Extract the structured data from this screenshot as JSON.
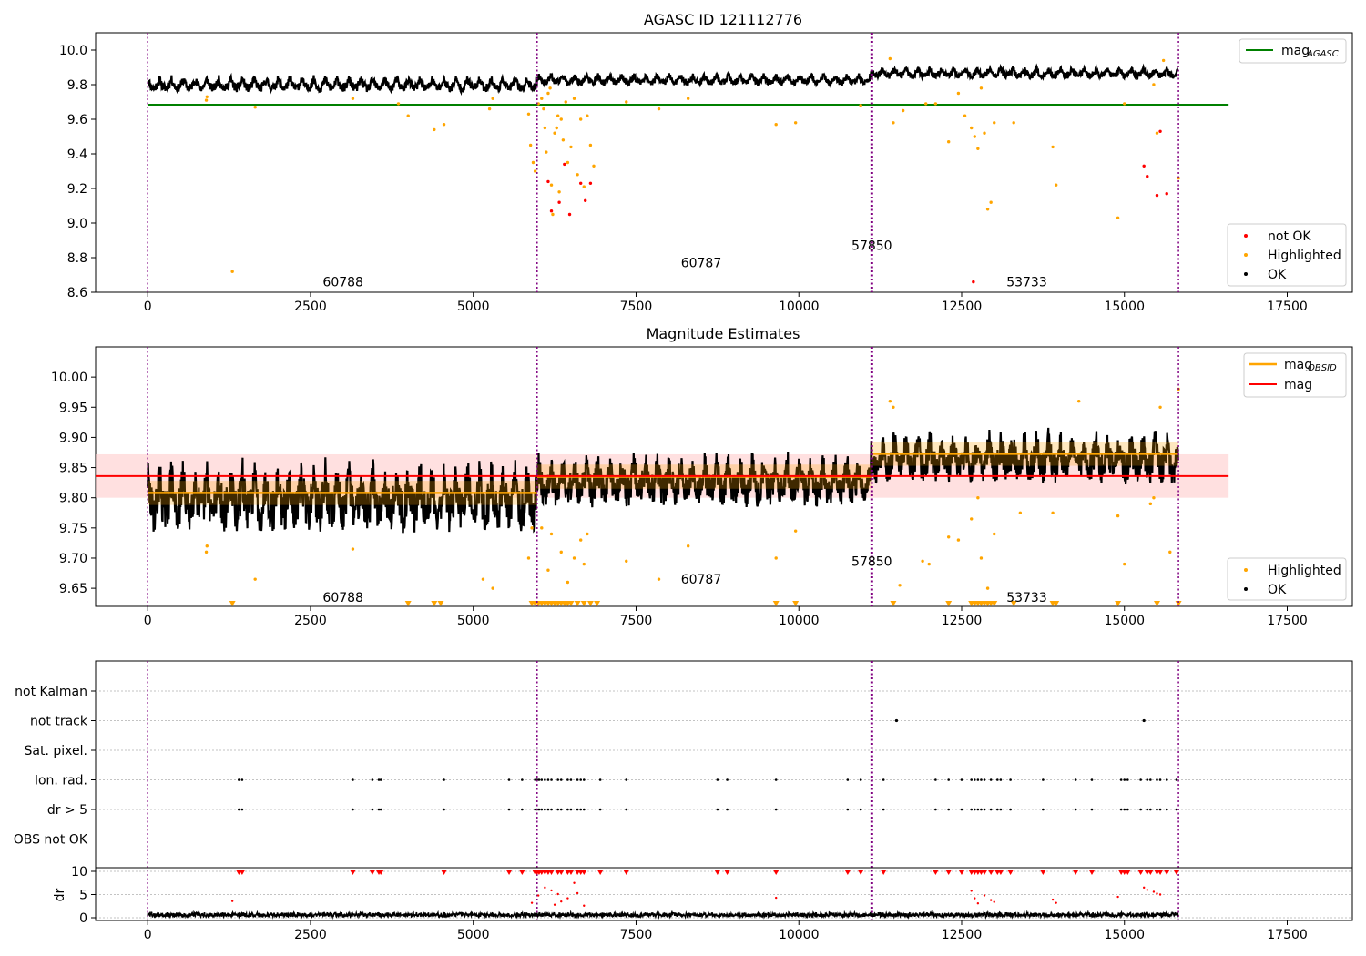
{
  "figure": {
    "title_top": "AGASC ID 121112776",
    "title_mid": "Magnitude Estimates"
  },
  "colors": {
    "ok": "#000000",
    "highlight": "#ffa500",
    "notok": "#ff0000",
    "agasc": "#008000",
    "obsid": "#ffa500",
    "mag": "#ff0000",
    "vline": "#800080",
    "band_mag": "#ffcccc",
    "grid": "#b0b0b0"
  },
  "chart_data": [
    {
      "type": "scatter",
      "title": "AGASC ID 121112776",
      "xlim": [
        -800,
        18500
      ],
      "ylim": [
        8.6,
        10.1
      ],
      "xticks": [
        0,
        2500,
        5000,
        7500,
        10000,
        12500,
        15000,
        17500
      ],
      "yticks": [
        8.6,
        8.8,
        9.0,
        9.2,
        9.4,
        9.6,
        9.8,
        10.0
      ],
      "obs_boundaries": [
        0,
        5980,
        11110,
        11130,
        15830
      ],
      "mag_agasc": 9.684,
      "observations": [
        {
          "obsid": "60788",
          "start": 0,
          "end": 5980,
          "mean": 9.81,
          "amp": 0.04
        },
        {
          "obsid": "60787",
          "start": 5980,
          "end": 11110,
          "mean": 9.835,
          "amp": 0.03
        },
        {
          "obsid": "57850",
          "start": 11110,
          "end": 11130,
          "mean": 9.86,
          "amp": 0.03
        },
        {
          "obsid": "53733",
          "start": 11130,
          "end": 15830,
          "mean": 9.873,
          "amp": 0.03
        }
      ],
      "obs_labels": [
        {
          "text": "60788",
          "x": 3000,
          "y": 8.66
        },
        {
          "text": "60787",
          "x": 8500,
          "y": 8.77
        },
        {
          "text": "57850",
          "x": 11120,
          "y": 8.87
        },
        {
          "text": "53733",
          "x": 13500,
          "y": 8.66
        }
      ],
      "highlighted": [
        [
          900,
          9.71
        ],
        [
          910,
          9.73
        ],
        [
          1300,
          8.72
        ],
        [
          1650,
          9.67
        ],
        [
          3150,
          9.72
        ],
        [
          3850,
          9.69
        ],
        [
          4000,
          9.62
        ],
        [
          4400,
          9.54
        ],
        [
          4550,
          9.57
        ],
        [
          5250,
          9.66
        ],
        [
          5300,
          9.72
        ],
        [
          5850,
          9.63
        ],
        [
          5880,
          9.45
        ],
        [
          5920,
          9.35
        ],
        [
          5950,
          9.3
        ],
        [
          6000,
          9.69
        ],
        [
          6050,
          9.72
        ],
        [
          6080,
          9.66
        ],
        [
          6100,
          9.55
        ],
        [
          6120,
          9.41
        ],
        [
          6150,
          9.75
        ],
        [
          6180,
          9.78
        ],
        [
          6200,
          9.22
        ],
        [
          6220,
          9.05
        ],
        [
          6250,
          9.52
        ],
        [
          6280,
          9.55
        ],
        [
          6300,
          9.62
        ],
        [
          6320,
          9.18
        ],
        [
          6350,
          9.6
        ],
        [
          6380,
          9.48
        ],
        [
          6420,
          9.7
        ],
        [
          6450,
          9.35
        ],
        [
          6500,
          9.44
        ],
        [
          6550,
          9.72
        ],
        [
          6600,
          9.28
        ],
        [
          6650,
          9.6
        ],
        [
          6700,
          9.21
        ],
        [
          6750,
          9.62
        ],
        [
          6800,
          9.45
        ],
        [
          6850,
          9.33
        ],
        [
          7350,
          9.7
        ],
        [
          7850,
          9.66
        ],
        [
          8300,
          9.72
        ],
        [
          9650,
          9.57
        ],
        [
          9950,
          9.58
        ],
        [
          10950,
          9.68
        ],
        [
          11400,
          9.95
        ],
        [
          11450,
          9.58
        ],
        [
          11600,
          9.65
        ],
        [
          11950,
          9.69
        ],
        [
          12100,
          9.69
        ],
        [
          12300,
          9.47
        ],
        [
          12450,
          9.75
        ],
        [
          12550,
          9.62
        ],
        [
          12650,
          9.55
        ],
        [
          12700,
          9.5
        ],
        [
          12750,
          9.43
        ],
        [
          12800,
          9.78
        ],
        [
          12850,
          9.52
        ],
        [
          12900,
          9.08
        ],
        [
          12950,
          9.12
        ],
        [
          13000,
          9.58
        ],
        [
          13300,
          9.58
        ],
        [
          13900,
          9.44
        ],
        [
          13950,
          9.22
        ],
        [
          14900,
          9.03
        ],
        [
          15000,
          9.69
        ],
        [
          15450,
          9.8
        ],
        [
          15500,
          9.52
        ],
        [
          15600,
          9.94
        ],
        [
          15830,
          9.26
        ]
      ],
      "not_ok": [
        [
          6150,
          9.24
        ],
        [
          6200,
          9.07
        ],
        [
          6320,
          9.12
        ],
        [
          6400,
          9.34
        ],
        [
          6480,
          9.05
        ],
        [
          6650,
          9.23
        ],
        [
          6720,
          9.13
        ],
        [
          6800,
          9.23
        ],
        [
          12680,
          8.66
        ],
        [
          15300,
          9.33
        ],
        [
          15350,
          9.27
        ],
        [
          15500,
          9.16
        ],
        [
          15550,
          9.53
        ],
        [
          15650,
          9.17
        ]
      ],
      "legend_upper": [
        {
          "label": "mag",
          "sub": "AGASC"
        }
      ],
      "legend_lower": [
        {
          "label": "not OK"
        },
        {
          "label": "Highlighted"
        },
        {
          "label": "OK"
        }
      ]
    },
    {
      "type": "scatter",
      "title": "Magnitude Estimates",
      "xlim": [
        -800,
        18500
      ],
      "ylim": [
        9.62,
        10.05
      ],
      "xticks": [
        0,
        2500,
        5000,
        7500,
        10000,
        12500,
        15000,
        17500
      ],
      "yticks": [
        9.65,
        9.7,
        9.75,
        9.8,
        9.85,
        9.9,
        9.95,
        10.0
      ],
      "mag": 9.836,
      "mag_band": [
        9.8,
        9.872
      ],
      "mag_obsid": [
        {
          "start": 0,
          "end": 5980,
          "value": 9.808
        },
        {
          "start": 5980,
          "end": 11110,
          "value": 9.835
        },
        {
          "start": 11110,
          "end": 15830,
          "value": 9.873
        }
      ],
      "highlighted": [
        [
          900,
          9.71
        ],
        [
          910,
          9.72
        ],
        [
          1650,
          9.665
        ],
        [
          3150,
          9.715
        ],
        [
          5150,
          9.665
        ],
        [
          5300,
          9.65
        ],
        [
          5850,
          9.7
        ],
        [
          5900,
          9.75
        ],
        [
          6050,
          9.75
        ],
        [
          6150,
          9.68
        ],
        [
          6200,
          9.74
        ],
        [
          6350,
          9.71
        ],
        [
          6450,
          9.66
        ],
        [
          6550,
          9.7
        ],
        [
          6650,
          9.73
        ],
        [
          6700,
          9.69
        ],
        [
          6750,
          9.74
        ],
        [
          7350,
          9.695
        ],
        [
          7850,
          9.665
        ],
        [
          8300,
          9.72
        ],
        [
          9650,
          9.7
        ],
        [
          9950,
          9.745
        ],
        [
          11400,
          9.96
        ],
        [
          11450,
          9.95
        ],
        [
          11550,
          9.655
        ],
        [
          11900,
          9.695
        ],
        [
          12000,
          9.69
        ],
        [
          12300,
          9.735
        ],
        [
          12450,
          9.73
        ],
        [
          12650,
          9.765
        ],
        [
          12750,
          9.8
        ],
        [
          12800,
          9.7
        ],
        [
          12900,
          9.65
        ],
        [
          13000,
          9.74
        ],
        [
          13400,
          9.775
        ],
        [
          13900,
          9.775
        ],
        [
          14300,
          9.96
        ],
        [
          14900,
          9.77
        ],
        [
          15000,
          9.69
        ],
        [
          15400,
          9.79
        ],
        [
          15450,
          9.8
        ],
        [
          15550,
          9.95
        ],
        [
          15700,
          9.71
        ],
        [
          15830,
          9.98
        ]
      ],
      "below_range": [
        1300,
        4000,
        4400,
        4500,
        5900,
        5950,
        6000,
        6050,
        6100,
        6150,
        6200,
        6250,
        6300,
        6350,
        6400,
        6450,
        6500,
        6600,
        6700,
        6800,
        6900,
        9650,
        9950,
        11450,
        12300,
        12650,
        12700,
        12750,
        12800,
        12850,
        12900,
        12950,
        13000,
        13300,
        13900,
        13950,
        14900,
        15500,
        15830
      ],
      "obs_labels": [
        {
          "text": "60788",
          "x": 3000,
          "y": 9.635
        },
        {
          "text": "60787",
          "x": 8500,
          "y": 9.665
        },
        {
          "text": "57850",
          "x": 11120,
          "y": 9.695
        },
        {
          "text": "53733",
          "x": 13500,
          "y": 9.635
        }
      ],
      "legend_upper": [
        {
          "label": "mag",
          "sub": "OBSID"
        },
        {
          "label": "mag"
        }
      ],
      "legend_lower": [
        {
          "label": "Highlighted"
        },
        {
          "label": "OK"
        }
      ]
    },
    {
      "type": "scatter",
      "flags": [
        "not Kalman",
        "not track",
        "Sat. pixel.",
        "Ion. rad.",
        "dr > 5",
        "OBS not OK"
      ],
      "not_track_x": [
        11500,
        15300
      ],
      "ion_rad_x": [
        1400,
        1450,
        3150,
        3450,
        3550,
        3580,
        4550,
        5550,
        5750,
        5950,
        5980,
        6010,
        6050,
        6100,
        6150,
        6200,
        6300,
        6350,
        6450,
        6500,
        6600,
        6650,
        6700,
        6950,
        7350,
        8750,
        8900,
        9650,
        10750,
        10950,
        11300,
        12100,
        12300,
        12500,
        12650,
        12700,
        12750,
        12800,
        12850,
        12950,
        13050,
        13100,
        13250,
        13750,
        14250,
        14500,
        14950,
        15000,
        15050,
        15250,
        15350,
        15400,
        15500,
        15550,
        15650,
        15800
      ],
      "dr_ylim": [
        0,
        10
      ],
      "dr_yticks": [
        0,
        5,
        10
      ],
      "dr_ylabel": "dr",
      "dr_high_x": [
        1400,
        1450,
        3150,
        3450,
        3550,
        3580,
        4550,
        5550,
        5750,
        5950,
        5980,
        6010,
        6050,
        6100,
        6150,
        6200,
        6300,
        6350,
        6450,
        6500,
        6600,
        6650,
        6700,
        6950,
        7350,
        8750,
        8900,
        9650,
        10750,
        10950,
        11300,
        12100,
        12300,
        12500,
        12650,
        12700,
        12750,
        12800,
        12850,
        12950,
        13050,
        13100,
        13250,
        13750,
        14250,
        14500,
        14950,
        15000,
        15050,
        15250,
        15350,
        15400,
        15500,
        15550,
        15650,
        15800
      ],
      "dr_mid": [
        [
          1300,
          3.6
        ],
        [
          5900,
          3.2
        ],
        [
          6000,
          4.8
        ],
        [
          6100,
          6.5
        ],
        [
          6200,
          5.9
        ],
        [
          6250,
          2.8
        ],
        [
          6300,
          5.1
        ],
        [
          6350,
          3.5
        ],
        [
          6450,
          4.2
        ],
        [
          6550,
          7.5
        ],
        [
          6600,
          5.3
        ],
        [
          6700,
          2.6
        ],
        [
          9650,
          4.3
        ],
        [
          12650,
          5.8
        ],
        [
          12700,
          4.2
        ],
        [
          12750,
          3.1
        ],
        [
          12850,
          4.8
        ],
        [
          12950,
          3.8
        ],
        [
          13000,
          3.4
        ],
        [
          13900,
          3.9
        ],
        [
          13950,
          3.2
        ],
        [
          14900,
          4.5
        ],
        [
          15300,
          6.5
        ],
        [
          15350,
          6.0
        ],
        [
          15450,
          5.6
        ],
        [
          15500,
          5.2
        ],
        [
          15550,
          5.0
        ]
      ],
      "xlim": [
        -800,
        18500
      ],
      "xticks": [
        0,
        2500,
        5000,
        7500,
        10000,
        12500,
        15000,
        17500
      ]
    }
  ]
}
